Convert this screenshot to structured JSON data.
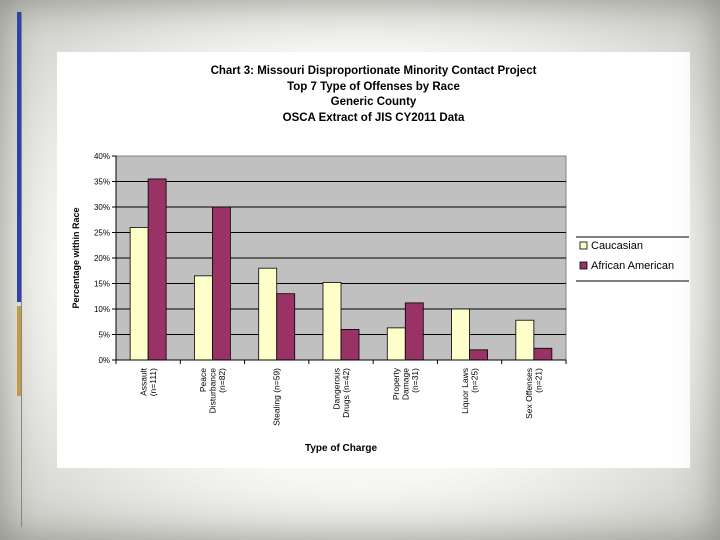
{
  "chart_data": {
    "type": "bar",
    "title_lines": [
      "Chart 3: Missouri Disproportionate Minority Contact Project",
      "Top 7 Type of Offenses by Race",
      "Generic County",
      "OSCA Extract of JIS CY2011 Data"
    ],
    "xlabel": "Type of Charge",
    "ylabel": "Percentage within Race",
    "ylim": [
      0,
      40
    ],
    "yticks": [
      0,
      5,
      10,
      15,
      20,
      25,
      30,
      35,
      40
    ],
    "ytick_labels": [
      "0%",
      "5%",
      "10%",
      "15%",
      "20%",
      "25%",
      "30%",
      "35%",
      "40%"
    ],
    "categories": [
      [
        "Assault",
        "(n=111)"
      ],
      [
        "Peace",
        "Disturbance",
        "(n=82)"
      ],
      [
        "Stealing (n=59)"
      ],
      [
        "Dangerous",
        "Drugs (n=42)"
      ],
      [
        "Property",
        "Damage",
        "(n=31)"
      ],
      [
        "Liquor Laws",
        "(n=25)"
      ],
      [
        "Sex Offenses",
        "(n=21)"
      ]
    ],
    "series": [
      {
        "name": "Caucasian",
        "color": "#ffffcc",
        "values": [
          26,
          16.5,
          18,
          15.2,
          6.3,
          10,
          7.8
        ]
      },
      {
        "name": "African American",
        "color": "#993366",
        "values": [
          35.5,
          30,
          13,
          6,
          11.2,
          2,
          2.3
        ]
      }
    ],
    "legend_position": "right",
    "grid": true
  }
}
